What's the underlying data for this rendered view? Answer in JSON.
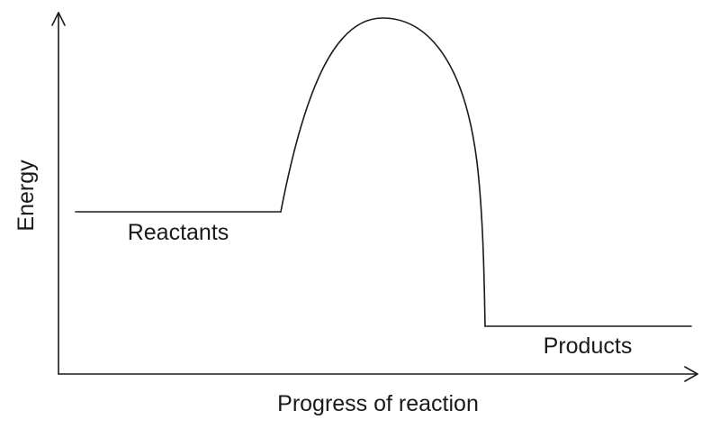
{
  "diagram": {
    "y_axis_label": "Energy",
    "x_axis_label": "Progress of reaction",
    "reactants_label": "Reactants",
    "products_label": "Products",
    "colors": {
      "line": "#1a1a1a",
      "text": "#1a1a1a",
      "background": "#ffffff"
    }
  }
}
